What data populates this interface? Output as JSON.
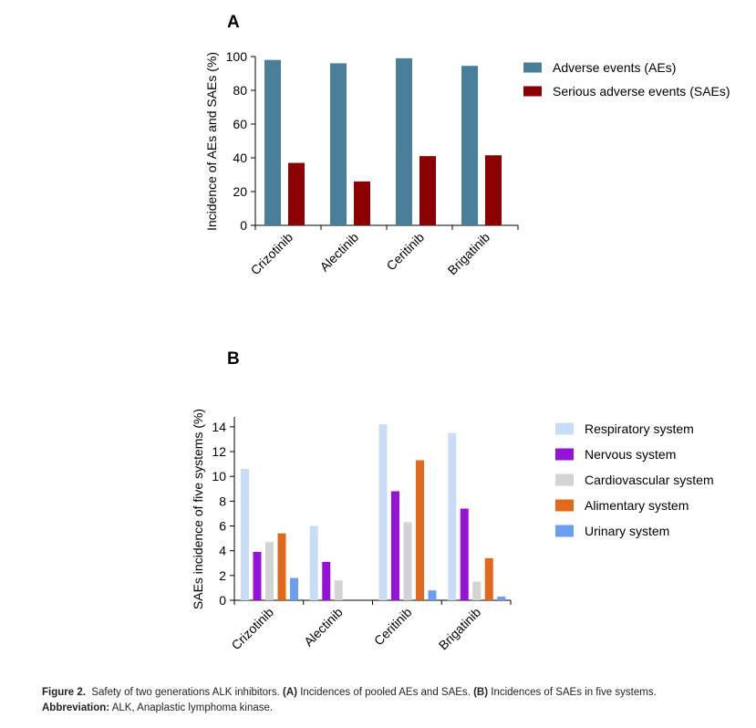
{
  "chart_data": [
    {
      "panel": "A",
      "type": "bar",
      "ylabel": "Incidence of AEs and SAEs (%)",
      "xlabel": "",
      "ylim": [
        0,
        100
      ],
      "yticks": [
        0,
        20,
        40,
        60,
        80,
        100
      ],
      "categories": [
        "Crizotinib",
        "Alectinib",
        "Ceritinib",
        "Brigatinib"
      ],
      "series": [
        {
          "name": "Adverse events (AEs)",
          "color": "#4a7f99",
          "values": [
            98,
            96,
            99,
            94.5
          ]
        },
        {
          "name": "Serious adverse events (SAEs)",
          "color": "#8b0000",
          "values": [
            37,
            26,
            41,
            41.5
          ]
        }
      ],
      "legend_position": "right"
    },
    {
      "panel": "B",
      "type": "bar",
      "ylabel": "SAEs incidence of five systems (%)",
      "xlabel": "",
      "ylim": [
        0,
        14.8
      ],
      "yticks": [
        0,
        2,
        4,
        6,
        8,
        10,
        12,
        14
      ],
      "categories": [
        "Crizotinib",
        "Alectinib",
        "Ceritinib",
        "Brigatinib"
      ],
      "series": [
        {
          "name": "Respiratory system",
          "color": "#c8dcf6",
          "values": [
            10.6,
            6.0,
            14.2,
            13.5
          ]
        },
        {
          "name": "Nervous system",
          "color": "#9612d8",
          "values": [
            3.9,
            3.1,
            8.8,
            7.4
          ]
        },
        {
          "name": "Cardiovascular system",
          "color": "#d3d3d3",
          "values": [
            4.7,
            1.6,
            6.3,
            1.5
          ]
        },
        {
          "name": "Alimentary system",
          "color": "#e2681c",
          "values": [
            5.4,
            0,
            11.3,
            3.4
          ]
        },
        {
          "name": "Urinary system",
          "color": "#6a9ef0",
          "values": [
            1.8,
            0,
            0.8,
            0.3
          ]
        }
      ],
      "legend_position": "right"
    }
  ],
  "caption": {
    "label": "Figure 2.",
    "text1": "Safety of two generations ALK inhibitors.",
    "a_tag": "(A)",
    "a_text": "Incidences of pooled AEs and SAEs.",
    "b_tag": "(B)",
    "b_text": "Incidences of SAEs in five systems.",
    "abbrev_label": "Abbreviation:",
    "abbrev_text": "ALK, Anaplastic lymphoma kinase."
  }
}
